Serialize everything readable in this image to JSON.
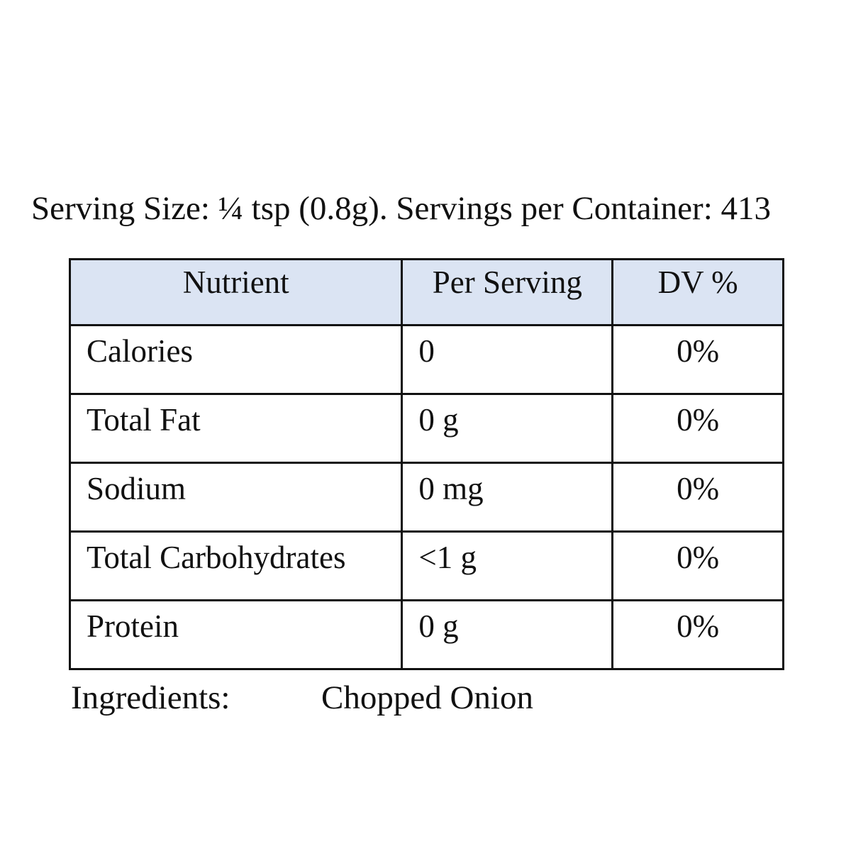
{
  "serving_line": "Serving Size: ¼ tsp (0.8g). Servings per Container: 413",
  "table": {
    "headers": [
      "Nutrient",
      "Per Serving",
      "DV %"
    ],
    "rows": [
      {
        "nutrient": "Calories",
        "per_serving": "0",
        "dv": "0%"
      },
      {
        "nutrient": "Total Fat",
        "per_serving": "0 g",
        "dv": "0%"
      },
      {
        "nutrient": "Sodium",
        "per_serving": "0 mg",
        "dv": "0%"
      },
      {
        "nutrient": "Total Carbohydrates",
        "per_serving": "<1 g",
        "dv": "0%"
      },
      {
        "nutrient": "Protein",
        "per_serving": "0 g",
        "dv": "0%"
      }
    ]
  },
  "ingredients": {
    "label": "Ingredients:",
    "value": "Chopped Onion"
  },
  "colors": {
    "header_background": "#dbe4f3",
    "border": "#111111"
  }
}
